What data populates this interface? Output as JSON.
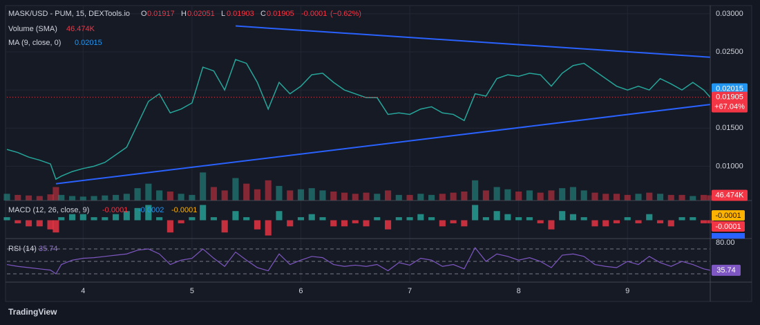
{
  "header": {
    "symbol": "MASK/USD - PUM, 15, DEXTools.io",
    "o_label": "O",
    "open": 0.01917,
    "h_label": "H",
    "high": 0.02051,
    "l_label": "L",
    "low": 0.01903,
    "c_label": "C",
    "close": 0.01905,
    "change": -0.0001,
    "change_pct": "(−0.62%)",
    "volume_label": "Volume (SMA)",
    "volume": "46.474K",
    "ma_label": "MA (9, close, 0)",
    "ma": 0.02015,
    "macd_label": "MACD (12, 26, close, 9)",
    "macd_hist": -0.0001,
    "macd_line": -0.0002,
    "macd_signal": -0.0001,
    "rsi_label": "RSI (14)",
    "rsi": 35.74,
    "change_since": "+67.04%",
    "brand": "TradingView"
  },
  "chart_data": [
    {
      "type": "line",
      "x": [
        3.3,
        3.4,
        3.5,
        3.6,
        3.7,
        3.75,
        3.8,
        3.9,
        4.0,
        4.1,
        4.2,
        4.3,
        4.4,
        4.5,
        4.6,
        4.7,
        4.8,
        4.9,
        5.0,
        5.1,
        5.2,
        5.3,
        5.4,
        5.5,
        5.6,
        5.7,
        5.8,
        5.9,
        6.0,
        6.1,
        6.2,
        6.3,
        6.4,
        6.5,
        6.6,
        6.7,
        6.8,
        6.9,
        7.0,
        7.1,
        7.2,
        7.3,
        7.4,
        7.5,
        7.6,
        7.7,
        7.8,
        7.9,
        8.0,
        8.1,
        8.2,
        8.3,
        8.4,
        8.5,
        8.6,
        8.7,
        8.8,
        8.9,
        9.0,
        9.1,
        9.2,
        9.3,
        9.4,
        9.5,
        9.6,
        9.7,
        9.76
      ],
      "series": [
        {
          "name": "MASK/USD - PUM, 15, DEXTools.io",
          "color": "#26a69a",
          "values": [
            0.0122,
            0.0118,
            0.0112,
            0.0108,
            0.0103,
            0.0083,
            0.0087,
            0.0093,
            0.0097,
            0.01,
            0.0105,
            0.0115,
            0.0125,
            0.0155,
            0.0185,
            0.0195,
            0.017,
            0.0175,
            0.0183,
            0.023,
            0.0225,
            0.02,
            0.024,
            0.0235,
            0.021,
            0.0175,
            0.021,
            0.0195,
            0.0205,
            0.022,
            0.0222,
            0.021,
            0.02,
            0.0195,
            0.019,
            0.019,
            0.0168,
            0.017,
            0.0168,
            0.0175,
            0.0178,
            0.017,
            0.0168,
            0.016,
            0.0195,
            0.0192,
            0.0215,
            0.022,
            0.0218,
            0.0222,
            0.022,
            0.0205,
            0.0222,
            0.0232,
            0.0235,
            0.0225,
            0.0215,
            0.0205,
            0.02,
            0.0205,
            0.02,
            0.0215,
            0.0208,
            0.02,
            0.021,
            0.02,
            0.01905
          ]
        }
      ],
      "xlim": [
        3.3,
        9.76
      ],
      "xticks": [
        4,
        5,
        6,
        7,
        8,
        9
      ],
      "ylim": [
        0.0055,
        0.0309
      ],
      "yticks": [
        {
          "value": 0.01,
          "label": "0.01000"
        },
        {
          "value": 0.015,
          "label": "0.01500"
        },
        {
          "value": 0.02,
          "label": "0.02000"
        },
        {
          "value": 0.025,
          "label": "0.02500"
        },
        {
          "value": 0.03,
          "label": "0.03000"
        }
      ],
      "trendlines": [
        {
          "x": [
            5.4,
            9.76
          ],
          "y": [
            0.0284,
            0.0243
          ],
          "color": "#2962ff"
        },
        {
          "x": [
            3.75,
            9.76
          ],
          "y": [
            0.0077,
            0.0181
          ],
          "color": "#2962ff"
        }
      ],
      "grid": true
    },
    {
      "type": "bar",
      "color": "#26a69a",
      "ylim": [
        0,
        400
      ],
      "values": [
        60,
        50,
        45,
        40,
        55,
        120,
        50,
        40,
        35,
        40,
        45,
        50,
        60,
        110,
        150,
        90,
        80,
        60,
        50,
        250,
        120,
        90,
        200,
        150,
        100,
        180,
        130,
        90,
        100,
        110,
        90,
        80,
        70,
        60,
        70,
        60,
        90,
        50,
        50,
        60,
        50,
        60,
        70,
        80,
        180,
        90,
        120,
        100,
        80,
        90,
        70,
        90,
        110,
        120,
        90,
        70,
        60,
        60,
        50,
        60,
        70,
        60,
        50,
        50,
        40,
        50,
        46.474
      ]
    },
    {
      "type": "bar",
      "color": "#26a69a",
      "ylim": [
        -0.0006,
        0.0006
      ],
      "values": [
        0.0001,
        -0.0001,
        -0.0002,
        -0.0002,
        -0.0003,
        -0.0004,
        0.0001,
        0.0002,
        0.0002,
        0.0001,
        0.0001,
        0.0002,
        0.0003,
        0.0004,
        0.0005,
        0.0001,
        -0.0004,
        -0.0001,
        0.0001,
        0.0005,
        0.0001,
        -0.0004,
        0.0003,
        0.0001,
        -0.0003,
        -0.0005,
        0.0003,
        -0.0002,
        0.0001,
        0.0002,
        0.0001,
        -0.0002,
        -0.0002,
        -0.0001,
        -0.0002,
        0.0001,
        -0.0003,
        0.0001,
        0.0001,
        0.0002,
        0.0001,
        -0.0002,
        -0.0001,
        -0.0002,
        0.0005,
        0.0001,
        0.0003,
        0.0002,
        0.0001,
        0.0001,
        -0.0001,
        -0.0003,
        0.0003,
        0.0002,
        0.0001,
        -0.0002,
        -0.0002,
        -0.0001,
        0.0001,
        -0.0001,
        0.0002,
        -0.0001,
        -0.0002,
        0.0001,
        0.0001,
        -0.0001,
        -0.0001
      ]
    },
    {
      "type": "line",
      "color": "#7e57c2",
      "ylim": [
        16.7,
        86.7
      ],
      "yticks": [
        {
          "value": 80,
          "label": "80.00"
        }
      ],
      "bands": [
        70,
        50,
        30
      ],
      "values": [
        45,
        42,
        40,
        38,
        36,
        30,
        45,
        52,
        55,
        56,
        58,
        60,
        62,
        68,
        70,
        62,
        45,
        52,
        55,
        70,
        55,
        42,
        65,
        52,
        40,
        35,
        62,
        45,
        52,
        58,
        56,
        45,
        42,
        44,
        42,
        45,
        35,
        48,
        44,
        55,
        52,
        42,
        45,
        38,
        72,
        50,
        62,
        58,
        52,
        56,
        50,
        40,
        60,
        62,
        58,
        45,
        42,
        40,
        50,
        45,
        58,
        48,
        42,
        50,
        45,
        38,
        35.74
      ]
    }
  ]
}
